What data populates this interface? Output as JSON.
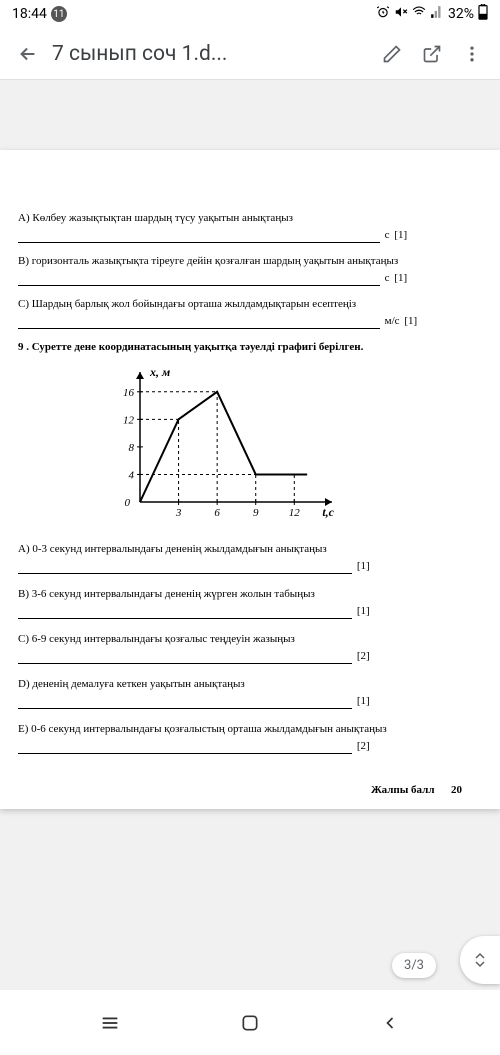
{
  "status": {
    "time": "18:44",
    "notif_count": "11",
    "battery": "32%"
  },
  "appbar": {
    "title": "7 сынып соч 1.d..."
  },
  "doc": {
    "qA": "A) Көлбеу жазықтықтан шардың түсу уақытын анықтаңыз",
    "qA_unit": "с",
    "qA_pts": "[1]",
    "qB": "B) горизонталь жазықтықта тіреуге дейін қозғалған шардың уақытын анықтаңыз",
    "qB_unit": "с",
    "qB_pts": "[1]",
    "qC": "C) Шардың барлық жол бойындағы орташа жылдамдықтарын есептеңіз",
    "qC_unit": "м/с",
    "qC_pts": "[1]",
    "q9": "9 . Суретте дене координатасының уақытқа тәуелді графигі берілген.",
    "chart": {
      "ylabel": "x, м",
      "xlabel": "t,с",
      "y_ticks": [
        0,
        4,
        8,
        12,
        16
      ],
      "x_ticks": [
        3,
        6,
        9,
        12
      ],
      "xlim": [
        0,
        14
      ],
      "ylim": [
        0,
        18
      ],
      "points": [
        [
          0,
          0
        ],
        [
          3,
          12
        ],
        [
          6,
          16
        ],
        [
          9,
          4
        ],
        [
          13,
          4
        ]
      ],
      "line_color": "#000000",
      "line_width": 2,
      "dash_color": "#000000"
    },
    "subA": "A) 0-3 секунд интервалындағы дененің жылдамдығын анықтаңыз",
    "subA_pts": "[1]",
    "subB": "B) 3-6 секунд интервалындағы дененің жүрген жолын табыңыз",
    "subB_pts": "[1]",
    "subC": "C) 6-9 секунд интервалындағы қозғалыс теңдеуін жазыңыз",
    "subC_pts": "[2]",
    "subD": "D) дененің демалуға кеткен уақытын анықтаңыз",
    "subD_pts": "[1]",
    "subE": "E) 0-6 секунд интервалындағы қозғалыстың орташа жылдамдығын анықтаңыз",
    "subE_pts": "[2]",
    "total_label": "Жалпы балл",
    "total_value": "20"
  },
  "page_indicator": "3/3"
}
